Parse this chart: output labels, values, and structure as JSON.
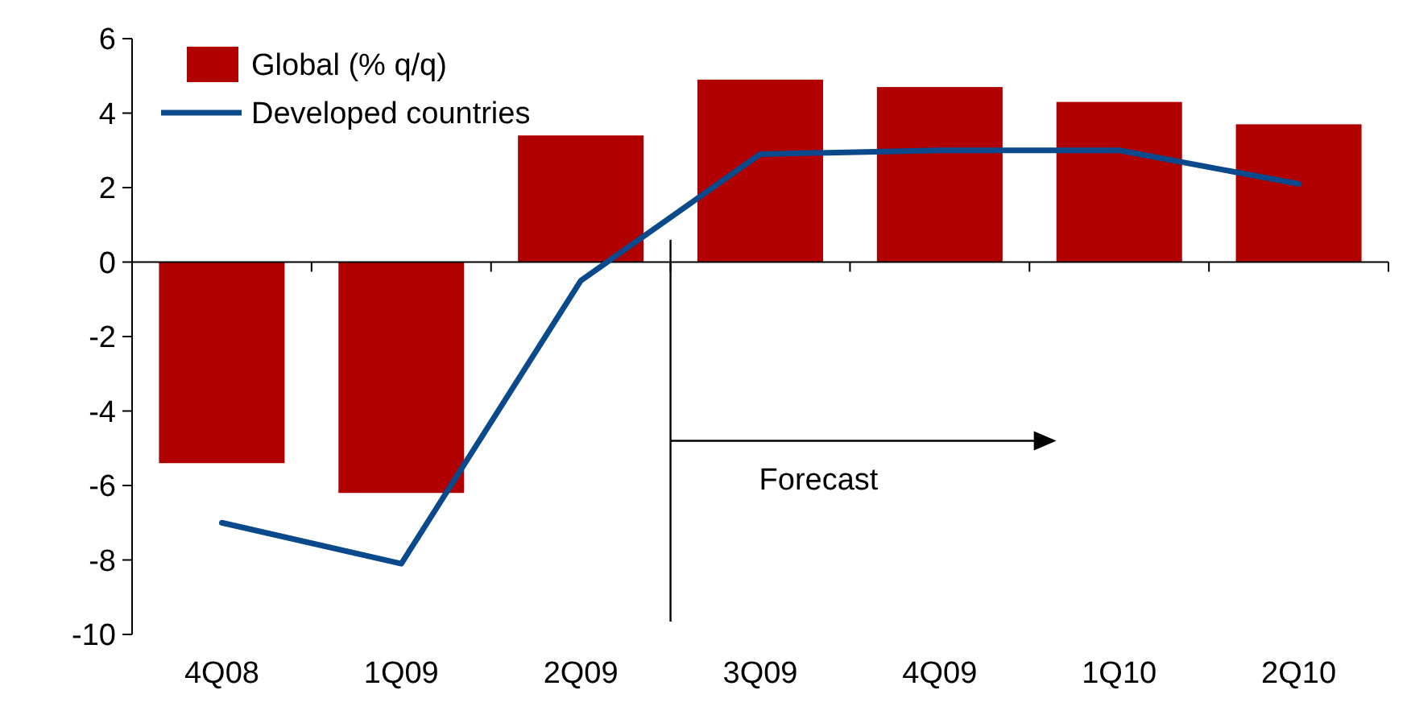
{
  "chart_data": {
    "type": "bar",
    "categories": [
      "4Q08",
      "1Q09",
      "2Q09",
      "3Q09",
      "4Q09",
      "1Q10",
      "2Q10"
    ],
    "series": [
      {
        "name": "Global (% q/q)",
        "color": "#b00000",
        "values": [
          -5.4,
          -6.2,
          3.4,
          4.9,
          4.7,
          4.3,
          3.7
        ]
      },
      {
        "name": "Developed countries",
        "type": "line",
        "color": "#0a4a8c",
        "values": [
          -7.0,
          -8.1,
          -0.5,
          2.9,
          3.0,
          3.0,
          2.1
        ]
      }
    ],
    "ylim": [
      -10,
      6
    ],
    "yticks": [
      -10,
      -8,
      -6,
      -4,
      -2,
      0,
      2,
      4,
      6
    ],
    "ref_lines": [
      {
        "axis": "x",
        "value": "3Q09",
        "label": "Forecast",
        "color": "#000000"
      }
    ],
    "legend": "top left",
    "marker": "none",
    "line_style": "solid"
  }
}
